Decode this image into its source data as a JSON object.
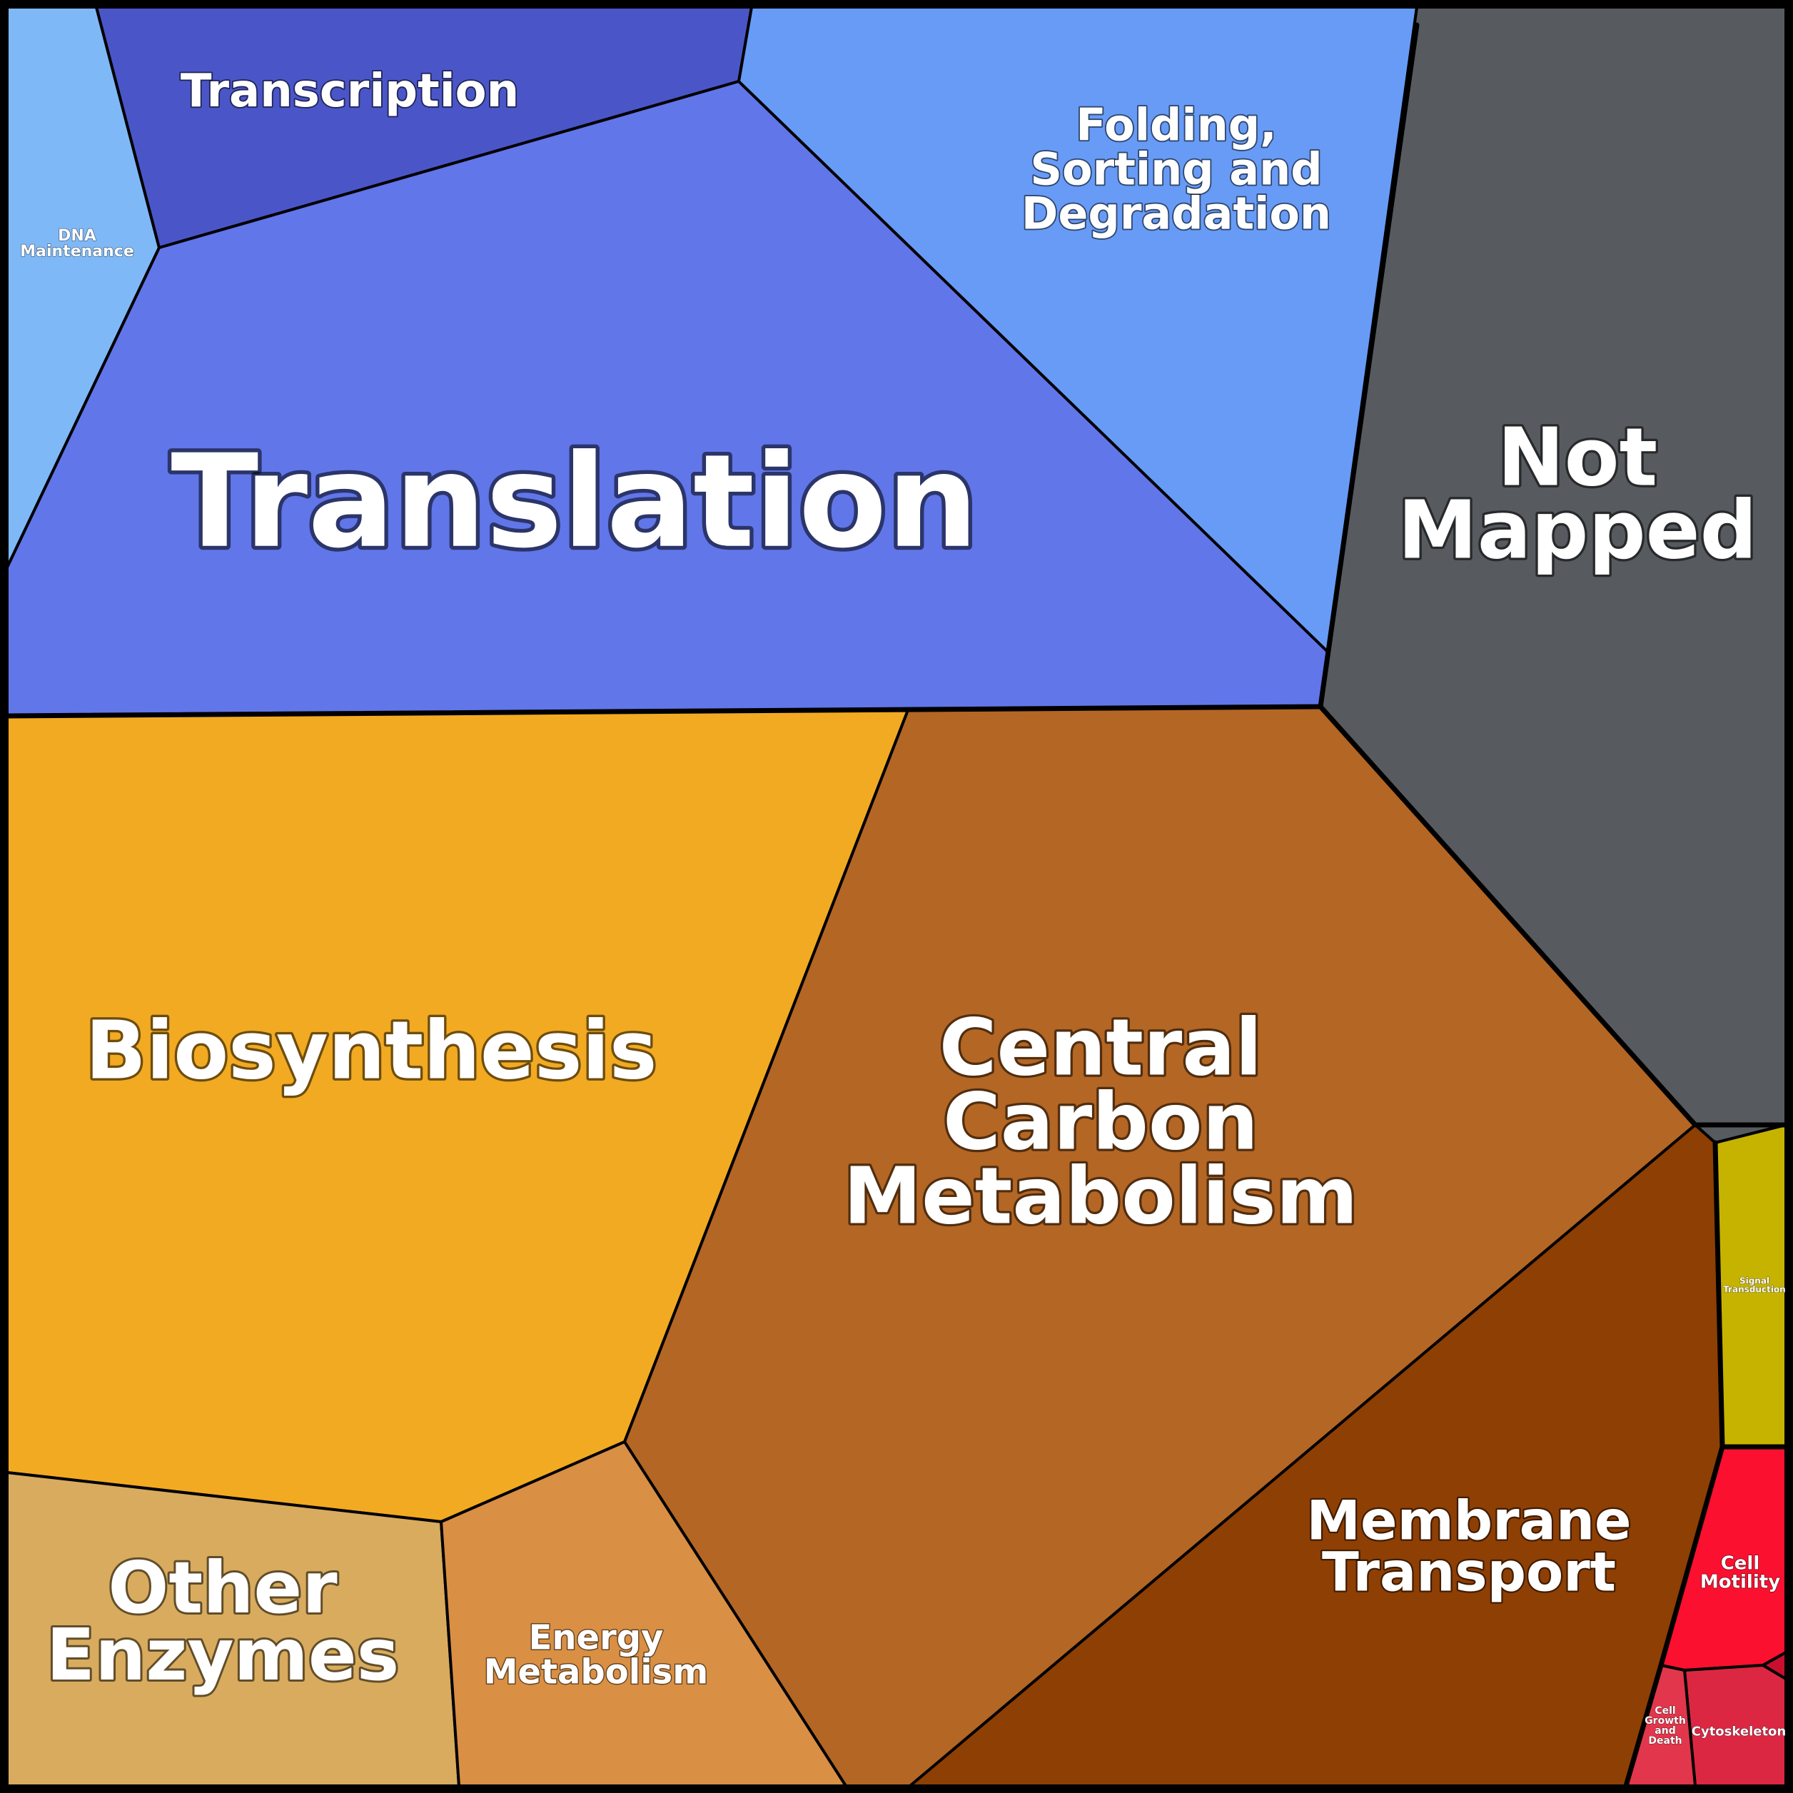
{
  "diagram": {
    "type": "voronoi-treemap",
    "groups": [
      {
        "color": "#5f76e8",
        "cells": [
          {
            "id": "dna-maintenance",
            "label": [
              "DNA",
              "Maintenance"
            ],
            "color": "#7fb8f6"
          },
          {
            "id": "transcription",
            "label": [
              "Transcription"
            ],
            "color": "#4a56c8"
          },
          {
            "id": "translation",
            "label": [
              "Translation"
            ],
            "color": "#6176e9"
          },
          {
            "id": "folding",
            "label": [
              "Folding,",
              "Sorting and",
              "Degradation"
            ],
            "color": "#679bf6"
          }
        ]
      },
      {
        "color": "#575b5f",
        "cells": [
          {
            "id": "not-mapped",
            "label": [
              "Not",
              "Mapped"
            ],
            "color": "#575b5f"
          }
        ]
      },
      {
        "color": "#b46624",
        "cells": [
          {
            "id": "biosynthesis",
            "label": [
              "Biosynthesis"
            ],
            "color": "#f2aa22"
          },
          {
            "id": "central-carbon",
            "label": [
              "Central",
              "Carbon",
              "Metabolism"
            ],
            "color": "#b46624"
          },
          {
            "id": "other-enzymes",
            "label": [
              "Other",
              "Enzymes"
            ],
            "color": "#d8ab5e"
          },
          {
            "id": "energy-metabolism",
            "label": [
              "Energy",
              "Metabolism"
            ],
            "color": "#d98f44"
          },
          {
            "id": "membrane-transport",
            "label": [
              "Membrane",
              "Transport"
            ],
            "color": "#8e3f04"
          }
        ]
      },
      {
        "color": "#c6b300",
        "cells": [
          {
            "id": "signal-transduction",
            "label": [
              "Signal",
              "Transduction"
            ],
            "color": "#c6b300"
          }
        ]
      },
      {
        "color": "#dc2743",
        "cells": [
          {
            "id": "cell-motility",
            "label": [
              "Cell",
              "Motility"
            ],
            "color": "#fb1030"
          },
          {
            "id": "cytoskeleton",
            "label": [
              "Cytoskeleton"
            ],
            "color": "#dc2743"
          },
          {
            "id": "cell-growth",
            "label": [
              "Cell",
              "Growth",
              "and",
              "Death"
            ],
            "color": "#e1364b"
          },
          {
            "id": "tiny-cell",
            "label": [],
            "color": "#c8102e"
          }
        ]
      }
    ]
  }
}
